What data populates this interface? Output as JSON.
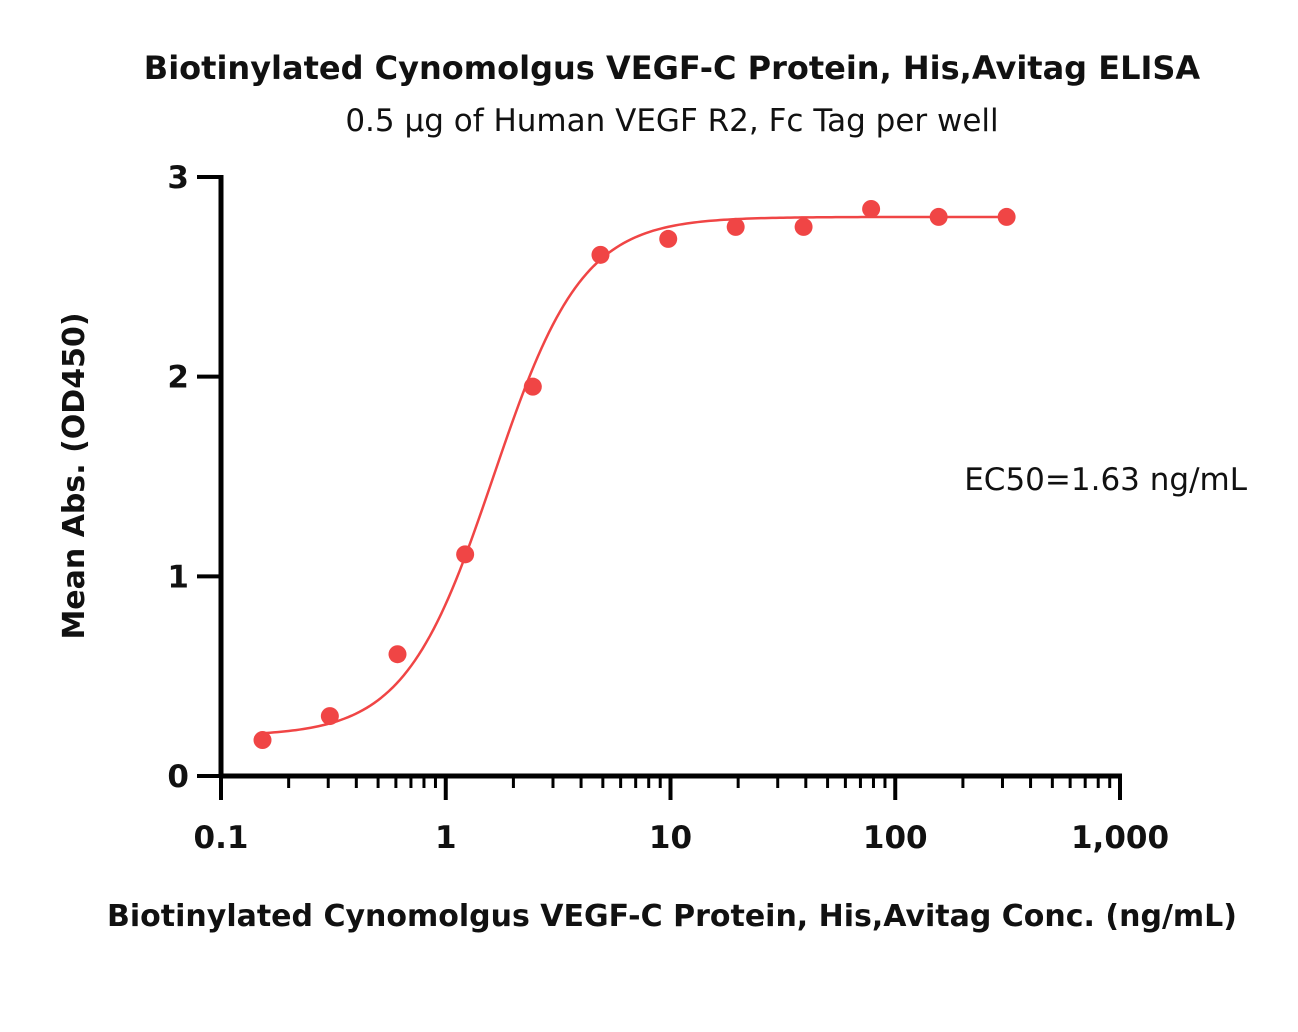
{
  "chart_data": {
    "type": "scatter",
    "title": "Biotinylated Cynomolgus VEGF-C Protein, His,Avitag ELISA",
    "subtitle": "0.5 µg of Human VEGF R2, Fc Tag per well",
    "xlabel": "Biotinylated Cynomolgus VEGF-C Protein, His,Avitag Conc. (ng/mL)",
    "ylabel": "Mean Abs. (OD450)",
    "x_scale": "log",
    "xlim": [
      0.1,
      1000
    ],
    "ylim": [
      0,
      3
    ],
    "x_ticks": [
      {
        "value": 0.1,
        "label": "0.1"
      },
      {
        "value": 1,
        "label": "1"
      },
      {
        "value": 10,
        "label": "10"
      },
      {
        "value": 100,
        "label": "100"
      },
      {
        "value": 1000,
        "label": "1,000"
      }
    ],
    "y_ticks": [
      {
        "value": 0,
        "label": "0"
      },
      {
        "value": 1,
        "label": "1"
      },
      {
        "value": 2,
        "label": "2"
      },
      {
        "value": 3,
        "label": "3"
      }
    ],
    "grid": false,
    "color": "#f04545",
    "series": [
      {
        "x": [
          0.153,
          0.305,
          0.61,
          1.22,
          2.44,
          4.88,
          9.77,
          19.5,
          39.1,
          78.1,
          156,
          313
        ],
        "y": [
          0.18,
          0.3,
          0.61,
          1.11,
          1.95,
          2.61,
          2.69,
          2.75,
          2.75,
          2.84,
          2.8,
          2.8
        ]
      }
    ],
    "fit": {
      "model": "4PL",
      "bottom": 0.2,
      "top": 2.8,
      "ec50": 1.63,
      "hill": 2.2
    },
    "annotations": [
      {
        "text": "EC50=1.63 ng/mL"
      }
    ]
  }
}
